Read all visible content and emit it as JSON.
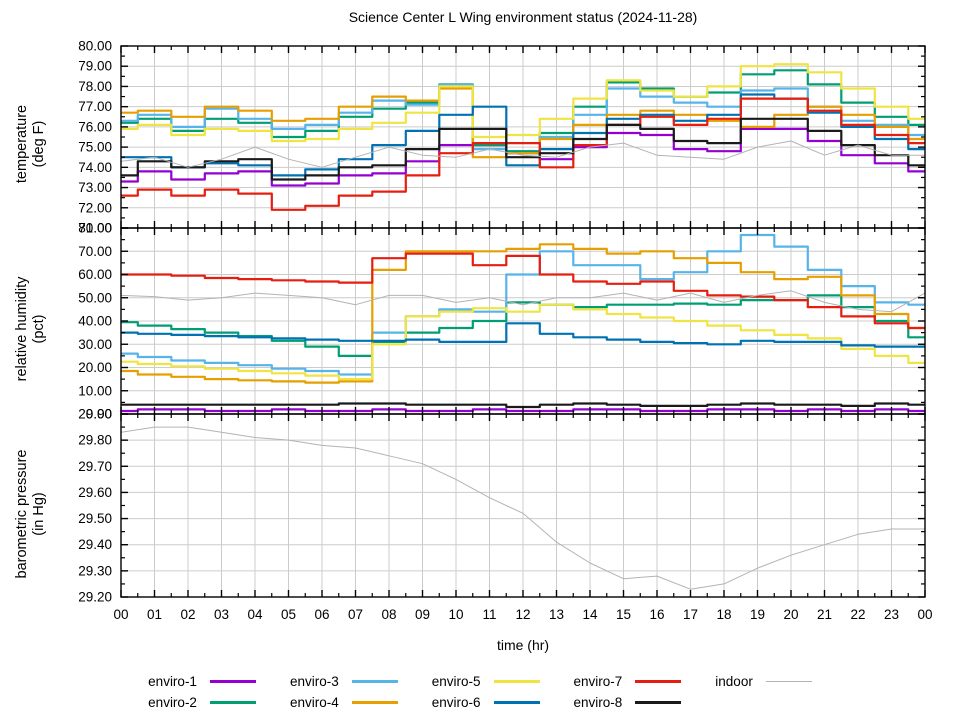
{
  "title": "Science Center L Wing environment status (2024-11-28)",
  "xlabel": "time (hr)",
  "x": [
    0,
    1,
    2,
    3,
    4,
    5,
    6,
    7,
    8,
    9,
    10,
    11,
    12,
    13,
    14,
    15,
    16,
    17,
    18,
    19,
    20,
    21,
    22,
    23,
    24
  ],
  "x_tick_labels": [
    "00",
    "01",
    "02",
    "03",
    "04",
    "05",
    "06",
    "07",
    "08",
    "09",
    "10",
    "11",
    "12",
    "13",
    "14",
    "15",
    "16",
    "17",
    "18",
    "19",
    "20",
    "21",
    "22",
    "23",
    "00"
  ],
  "colors": {
    "enviro-1": "#9400d3",
    "enviro-2": "#009e73",
    "enviro-3": "#56b4e9",
    "enviro-4": "#e69f00",
    "enviro-5": "#f0e442",
    "enviro-6": "#0072b2",
    "enviro-7": "#e51e10",
    "enviro-8": "#1a1a1a",
    "indoor": "#b3b3b3",
    "grid": "#cccccc",
    "border": "#000000"
  },
  "legend": {
    "items": [
      {
        "label": "enviro-1",
        "color": "#9400d3",
        "thin": false
      },
      {
        "label": "enviro-2",
        "color": "#009e73",
        "thin": false
      },
      {
        "label": "enviro-3",
        "color": "#56b4e9",
        "thin": false
      },
      {
        "label": "enviro-4",
        "color": "#e69f00",
        "thin": false
      },
      {
        "label": "enviro-5",
        "color": "#f0e442",
        "thin": false
      },
      {
        "label": "enviro-6",
        "color": "#0072b2",
        "thin": false
      },
      {
        "label": "enviro-7",
        "color": "#e51e10",
        "thin": false
      },
      {
        "label": "enviro-8",
        "color": "#1a1a1a",
        "thin": false
      },
      {
        "label": "indoor",
        "color": "#b3b3b3",
        "thin": true
      }
    ]
  },
  "chart_data": [
    {
      "type": "line",
      "panel": "temperature",
      "ylabel": "temperature",
      "ylabel_units": "(deg F)",
      "ylim": [
        71,
        80
      ],
      "ytick_step": 1,
      "series": [
        {
          "name": "enviro-1",
          "color": "#9400d3",
          "values": [
            73.3,
            73.8,
            73.4,
            73.7,
            73.8,
            73.1,
            73.2,
            73.6,
            73.7,
            74.3,
            75.1,
            75.1,
            74.7,
            74.4,
            75.0,
            75.7,
            75.6,
            74.9,
            74.8,
            75.9,
            75.9,
            75.3,
            74.6,
            74.2,
            73.8
          ]
        },
        {
          "name": "enviro-2",
          "color": "#009e73",
          "values": [
            76.2,
            76.4,
            75.8,
            76.4,
            76.2,
            75.5,
            75.8,
            76.5,
            76.9,
            77.2,
            78.1,
            75.1,
            74.8,
            75.7,
            77.0,
            78.2,
            77.9,
            77.5,
            77.7,
            78.6,
            78.8,
            78.1,
            77.2,
            76.5,
            76.1
          ]
        },
        {
          "name": "enviro-3",
          "color": "#56b4e9",
          "values": [
            76.3,
            76.6,
            76.0,
            76.9,
            76.4,
            75.9,
            76.1,
            76.7,
            77.3,
            77.1,
            78.1,
            74.9,
            74.7,
            75.5,
            76.6,
            77.9,
            77.5,
            77.2,
            77.0,
            77.8,
            77.9,
            77.0,
            76.3,
            76.1,
            75.6
          ]
        },
        {
          "name": "enviro-4",
          "color": "#e69f00",
          "values": [
            76.7,
            76.8,
            76.5,
            77.0,
            76.8,
            76.3,
            76.4,
            77.0,
            77.5,
            77.3,
            77.9,
            74.5,
            74.7,
            75.4,
            76.1,
            76.6,
            76.8,
            76.6,
            76.3,
            76.0,
            76.6,
            77.0,
            76.6,
            76.0,
            75.4
          ]
        },
        {
          "name": "enviro-5",
          "color": "#f0e442",
          "values": [
            75.9,
            76.1,
            75.6,
            75.9,
            75.8,
            75.3,
            75.4,
            75.9,
            76.2,
            76.7,
            78.0,
            75.5,
            75.6,
            76.4,
            77.4,
            78.3,
            77.8,
            77.5,
            78.0,
            79.0,
            79.1,
            78.7,
            77.9,
            77.0,
            76.4
          ]
        },
        {
          "name": "enviro-6",
          "color": "#0072b2",
          "values": [
            74.5,
            74.5,
            74.0,
            74.2,
            74.1,
            73.6,
            73.9,
            74.4,
            75.1,
            75.8,
            76.6,
            77.0,
            74.1,
            74.9,
            75.7,
            76.4,
            76.6,
            76.3,
            76.6,
            77.6,
            77.4,
            76.7,
            76.0,
            75.4,
            74.9
          ]
        },
        {
          "name": "enviro-7",
          "color": "#e51e10",
          "values": [
            72.6,
            72.9,
            72.6,
            72.9,
            72.7,
            71.9,
            72.1,
            72.6,
            72.8,
            73.6,
            74.7,
            75.2,
            75.2,
            74.0,
            75.1,
            76.1,
            76.5,
            76.1,
            76.4,
            77.4,
            77.4,
            76.8,
            76.1,
            75.6,
            75.2
          ]
        },
        {
          "name": "enviro-8",
          "color": "#1a1a1a",
          "values": [
            73.6,
            74.3,
            74.0,
            74.3,
            74.4,
            73.4,
            73.6,
            74.0,
            74.1,
            74.9,
            75.9,
            75.9,
            74.5,
            74.7,
            75.4,
            76.1,
            75.9,
            75.3,
            75.2,
            76.4,
            76.4,
            75.8,
            75.1,
            74.6,
            74.1
          ]
        },
        {
          "name": "indoor",
          "color": "#b3b3b3",
          "thin": true,
          "values": [
            74.3,
            74.5,
            74.0,
            74.4,
            75.0,
            74.4,
            74.0,
            74.5,
            75.0,
            74.6,
            74.5,
            74.9,
            74.6,
            74.5,
            75.0,
            75.2,
            74.6,
            74.5,
            74.4,
            75.0,
            75.3,
            74.6,
            75.1,
            74.6,
            74.6
          ]
        }
      ]
    },
    {
      "type": "line",
      "panel": "relative-humidity",
      "ylabel": "relative humidity",
      "ylabel_units": "(pct)",
      "ylim": [
        0,
        80
      ],
      "ytick_step": 10,
      "series": [
        {
          "name": "enviro-1",
          "color": "#9400d3",
          "values": [
            1.3,
            2,
            2,
            1.3,
            1.3,
            2,
            1.3,
            1.3,
            2,
            1.3,
            1.3,
            2,
            1.3,
            1.3,
            2,
            2,
            1.3,
            1.3,
            2,
            2,
            1.3,
            2,
            1.3,
            2,
            1.3
          ]
        },
        {
          "name": "enviro-2",
          "color": "#009e73",
          "values": [
            39.5,
            38,
            36.5,
            35,
            33.5,
            31.5,
            29,
            25,
            31,
            35,
            37,
            40,
            48,
            47,
            46,
            47,
            47,
            47.5,
            47,
            49,
            49,
            51,
            46,
            40,
            33
          ]
        },
        {
          "name": "enviro-3",
          "color": "#56b4e9",
          "values": [
            26,
            24.5,
            23,
            22,
            21,
            19.5,
            18.5,
            17,
            35,
            42,
            45,
            44,
            60,
            70,
            64,
            64,
            58,
            61,
            70,
            77,
            72,
            62,
            55,
            48,
            47
          ]
        },
        {
          "name": "enviro-4",
          "color": "#e69f00",
          "values": [
            18.5,
            17,
            16,
            15,
            14.5,
            14,
            13.5,
            14,
            62,
            70,
            70,
            70,
            71,
            73,
            71,
            69,
            70,
            67,
            65,
            61,
            58,
            59,
            51,
            43,
            37
          ]
        },
        {
          "name": "enviro-5",
          "color": "#f0e442",
          "values": [
            22.5,
            21.5,
            20.5,
            19.5,
            18.5,
            17.5,
            16.5,
            15,
            30,
            42,
            44,
            45.5,
            44,
            47,
            45,
            43,
            41.5,
            40,
            38,
            36,
            34,
            32.5,
            28,
            25,
            22
          ]
        },
        {
          "name": "enviro-6",
          "color": "#0072b2",
          "values": [
            35,
            34.5,
            34,
            33.5,
            33,
            32.5,
            32,
            31.5,
            31.5,
            32,
            31,
            31,
            39,
            34.5,
            33,
            32,
            31,
            30.5,
            30,
            31.5,
            31,
            31,
            29.5,
            29,
            29
          ]
        },
        {
          "name": "enviro-7",
          "color": "#e51e10",
          "values": [
            60,
            60,
            59.5,
            58.5,
            58,
            57.5,
            57,
            56.5,
            67,
            69,
            69,
            64,
            68,
            60,
            57,
            56,
            57,
            53,
            51,
            50.5,
            49,
            46,
            42,
            39,
            37
          ]
        },
        {
          "name": "enviro-8",
          "color": "#1a1a1a",
          "values": [
            4,
            4,
            4,
            4,
            4,
            4,
            4,
            4.5,
            4.5,
            4,
            4,
            4,
            3,
            4,
            4.5,
            4,
            3.5,
            3.5,
            4,
            4.5,
            4,
            4,
            3.5,
            4.5,
            4
          ]
        },
        {
          "name": "indoor",
          "color": "#b3b3b3",
          "thin": true,
          "values": [
            51,
            50.5,
            49,
            50,
            52,
            51,
            50,
            47,
            51,
            51,
            48,
            50,
            47,
            50,
            50,
            52,
            49,
            52,
            48,
            51,
            53,
            48,
            45,
            44,
            52
          ]
        }
      ]
    },
    {
      "type": "line",
      "panel": "barometric-pressure",
      "ylabel": "barometric pressure",
      "ylabel_units": "(in Hg)",
      "ylim": [
        29.2,
        29.9
      ],
      "ytick_step": 0.1,
      "series": [
        {
          "name": "indoor",
          "color": "#b3b3b3",
          "thin": true,
          "values": [
            29.83,
            29.85,
            29.85,
            29.83,
            29.81,
            29.8,
            29.78,
            29.77,
            29.74,
            29.71,
            29.65,
            29.58,
            29.52,
            29.41,
            29.33,
            29.27,
            29.28,
            29.23,
            29.25,
            29.31,
            29.36,
            29.4,
            29.44,
            29.46,
            29.46
          ]
        }
      ]
    }
  ]
}
